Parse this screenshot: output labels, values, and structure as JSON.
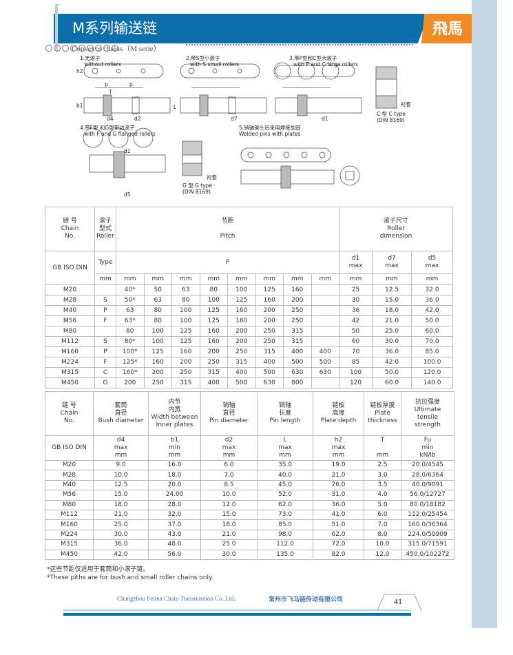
{
  "header": {
    "title": "M系列输送链",
    "subtitle": "Conveyor chains（M serie）",
    "logo": "飛馬",
    "accent": "#0a6fab",
    "brand_orange": "#f08a24"
  },
  "diagrams": [
    {
      "cn": "1.无滚子",
      "en": "without rollers"
    },
    {
      "cn": "2.带S型小滚子",
      "en": "with S small rollers"
    },
    {
      "cn": "3.带P型和C型大滚子",
      "en": "with P and C large rollers"
    },
    {
      "cn": "4.带F型 和G型带边滚子",
      "en": "with F and G flanged rollers"
    },
    {
      "cn": "5.销轴铆头后采用焊接加固",
      "en": "Welded pins with plates"
    }
  ],
  "diagram_labels": {
    "c_type": "C 型 C type",
    "g_type": "G 型 G type",
    "din": "(DIN 8169)",
    "bush": "衬套",
    "p": "p",
    "h2": "h2",
    "b1": "b1",
    "T": "T",
    "L": "L",
    "d4": "d4",
    "d2": "d2",
    "d7": "d7",
    "d1": "d1",
    "d5": "d5"
  },
  "table1": {
    "h_chain": [
      "链 号",
      "Chain",
      "No."
    ],
    "h_roller": [
      "滚子",
      "型式",
      "Roller"
    ],
    "h_pitch": [
      "节距",
      "Pitch"
    ],
    "h_rdim": [
      "滚子尺寸",
      "Roller",
      "dimension"
    ],
    "std": "GB ISO  DIN",
    "type": "Type",
    "P": "P",
    "d1": [
      "d1",
      "max"
    ],
    "d7": [
      "d7",
      "max"
    ],
    "d5": [
      "d5",
      "max"
    ],
    "mm": "mm",
    "rows": [
      [
        "M20",
        "",
        "40*",
        "50",
        "63",
        "80",
        "100",
        "125",
        "160",
        "",
        "25",
        "12.5",
        "32.0"
      ],
      [
        "M28",
        "S",
        "50*",
        "63",
        "80",
        "100",
        "125",
        "160",
        "200",
        "",
        "30",
        "15.0",
        "36.0"
      ],
      [
        "M40",
        "P",
        "63",
        "80",
        "100",
        "125",
        "160",
        "200",
        "250",
        "",
        "36",
        "18.0",
        "42.0"
      ],
      [
        "M56",
        "F",
        "63*",
        "80",
        "100",
        "125",
        "160",
        "200",
        "250",
        "",
        "42",
        "21.0",
        "50.0"
      ],
      [
        "M80",
        "",
        "80",
        "100",
        "125",
        "160",
        "200",
        "250",
        "315",
        "",
        "50",
        "25.0",
        "60.0"
      ],
      [
        "M112",
        "S",
        "80*",
        "100",
        "125",
        "160",
        "200",
        "250",
        "315",
        "",
        "60",
        "30.0",
        "70.0"
      ],
      [
        "M160",
        "P",
        "100*",
        "125",
        "160",
        "200",
        "250",
        "315",
        "400",
        "400",
        "70",
        "36.0",
        "85.0"
      ],
      [
        "M224",
        "F",
        "125*",
        "160",
        "200",
        "250",
        "315",
        "400",
        "500",
        "500",
        "85",
        "42.0",
        "100.0"
      ],
      [
        "M315",
        "C",
        "160*",
        "200",
        "250",
        "315",
        "400",
        "500",
        "630",
        "630",
        "100",
        "50.0",
        "120.0"
      ],
      [
        "M450",
        "G",
        "200",
        "250",
        "315",
        "400",
        "500",
        "630",
        "800",
        "",
        "120",
        "60.0",
        "140.0"
      ]
    ]
  },
  "table2": {
    "headers": [
      [
        "链 号",
        "Chain",
        "No."
      ],
      [
        "套筒",
        "直径",
        "Bush diameter"
      ],
      [
        "内节",
        "内宽",
        "Width between",
        "Inner plates"
      ],
      [
        "销轴",
        "直径",
        "Pin diameter"
      ],
      [
        "销轴",
        "长度",
        "Pin length"
      ],
      [
        "链板",
        "高度",
        "Plate depth"
      ],
      [
        "链板厚度",
        "Plate",
        "thickness"
      ],
      [
        "抗拉强度",
        "Ultimate",
        "tensile",
        "strength"
      ]
    ],
    "units": [
      [
        "GB ISO DIN"
      ],
      [
        "d4",
        "max",
        "mm"
      ],
      [
        "b1",
        "min",
        "mm"
      ],
      [
        "d2",
        "max",
        "mm"
      ],
      [
        "L",
        "max",
        "mm"
      ],
      [
        "h2",
        "max",
        "mm"
      ],
      [
        "T",
        "",
        "mm"
      ],
      [
        "Fu",
        "min",
        "kN/lb"
      ]
    ],
    "rows": [
      [
        "M20",
        "9.0",
        "16.0",
        "6.0",
        "35.0",
        "19.0",
        "2.5",
        "20.0/4545"
      ],
      [
        "M28",
        "10.0",
        "18.0",
        "7.0",
        "40.0",
        "21.0",
        "3.0",
        "28.0/6364"
      ],
      [
        "M40",
        "12.5",
        "20.0",
        "8.5",
        "45.0",
        "26.0",
        "3.5",
        "40.0/9091"
      ],
      [
        "M56",
        "15.0",
        "24.00",
        "10.0",
        "52.0",
        "31.0",
        "4.0",
        "56.0/12727"
      ],
      [
        "M80",
        "18.0",
        "28.0",
        "12.0",
        "62.0",
        "36.0",
        "5.0",
        "80.0/18182"
      ],
      [
        "M112",
        "21.0",
        "32.0",
        "15.0",
        "73.0",
        "41.0",
        "6.0",
        "112.0/25454"
      ],
      [
        "M160",
        "25.0",
        "37.0",
        "18.0",
        "85.0",
        "51.0",
        "7.0",
        "160.0/36364"
      ],
      [
        "M224",
        "30.0",
        "43.0",
        "21.0",
        "98.0",
        "62.0",
        "8.0",
        "224.0/50909"
      ],
      [
        "M315",
        "36.0",
        "48.0",
        "25.0",
        "112.0",
        "72.0",
        "10.0",
        "315.0/71591"
      ],
      [
        "M450",
        "42.0",
        "56.0",
        "30.0",
        "135.0",
        "82.0",
        "12.0",
        "450.0/102272"
      ]
    ]
  },
  "notes": [
    "*这些节距仅适用于套筒和小滚子链。",
    "*These piths are for bush and small roller chains only."
  ],
  "footer": {
    "company_en": "Changzhou Feima Chain Transmission Co.,Ltd.",
    "company_cn": "常州市飞马链传动有限公司",
    "page": "41"
  }
}
